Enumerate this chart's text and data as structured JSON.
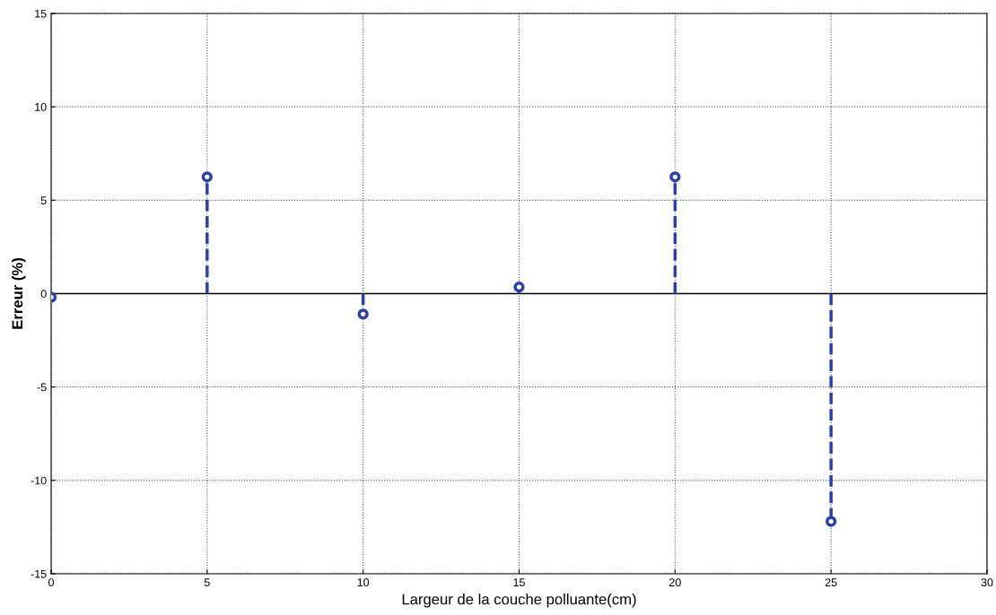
{
  "chart_data": {
    "type": "lollipop",
    "xlabel": "Largeur de la couche polluante(cm)",
    "ylabel": "Erreur (%)",
    "x": [
      0,
      5,
      10,
      15,
      20,
      25
    ],
    "series": [
      {
        "color": "#2a3fb0",
        "values": [
          -0.2,
          6.25,
          -1.1,
          0.35,
          6.25,
          -12.2
        ]
      }
    ],
    "xlim": [
      0,
      30
    ],
    "xticks": [
      0,
      5,
      10,
      15,
      20,
      25,
      30
    ],
    "ylim": [
      -15,
      15
    ],
    "yticks": [
      -15,
      -10,
      -5,
      0,
      5,
      10,
      15
    ],
    "grid": true,
    "marker": "circle",
    "line_style": "dashed"
  }
}
